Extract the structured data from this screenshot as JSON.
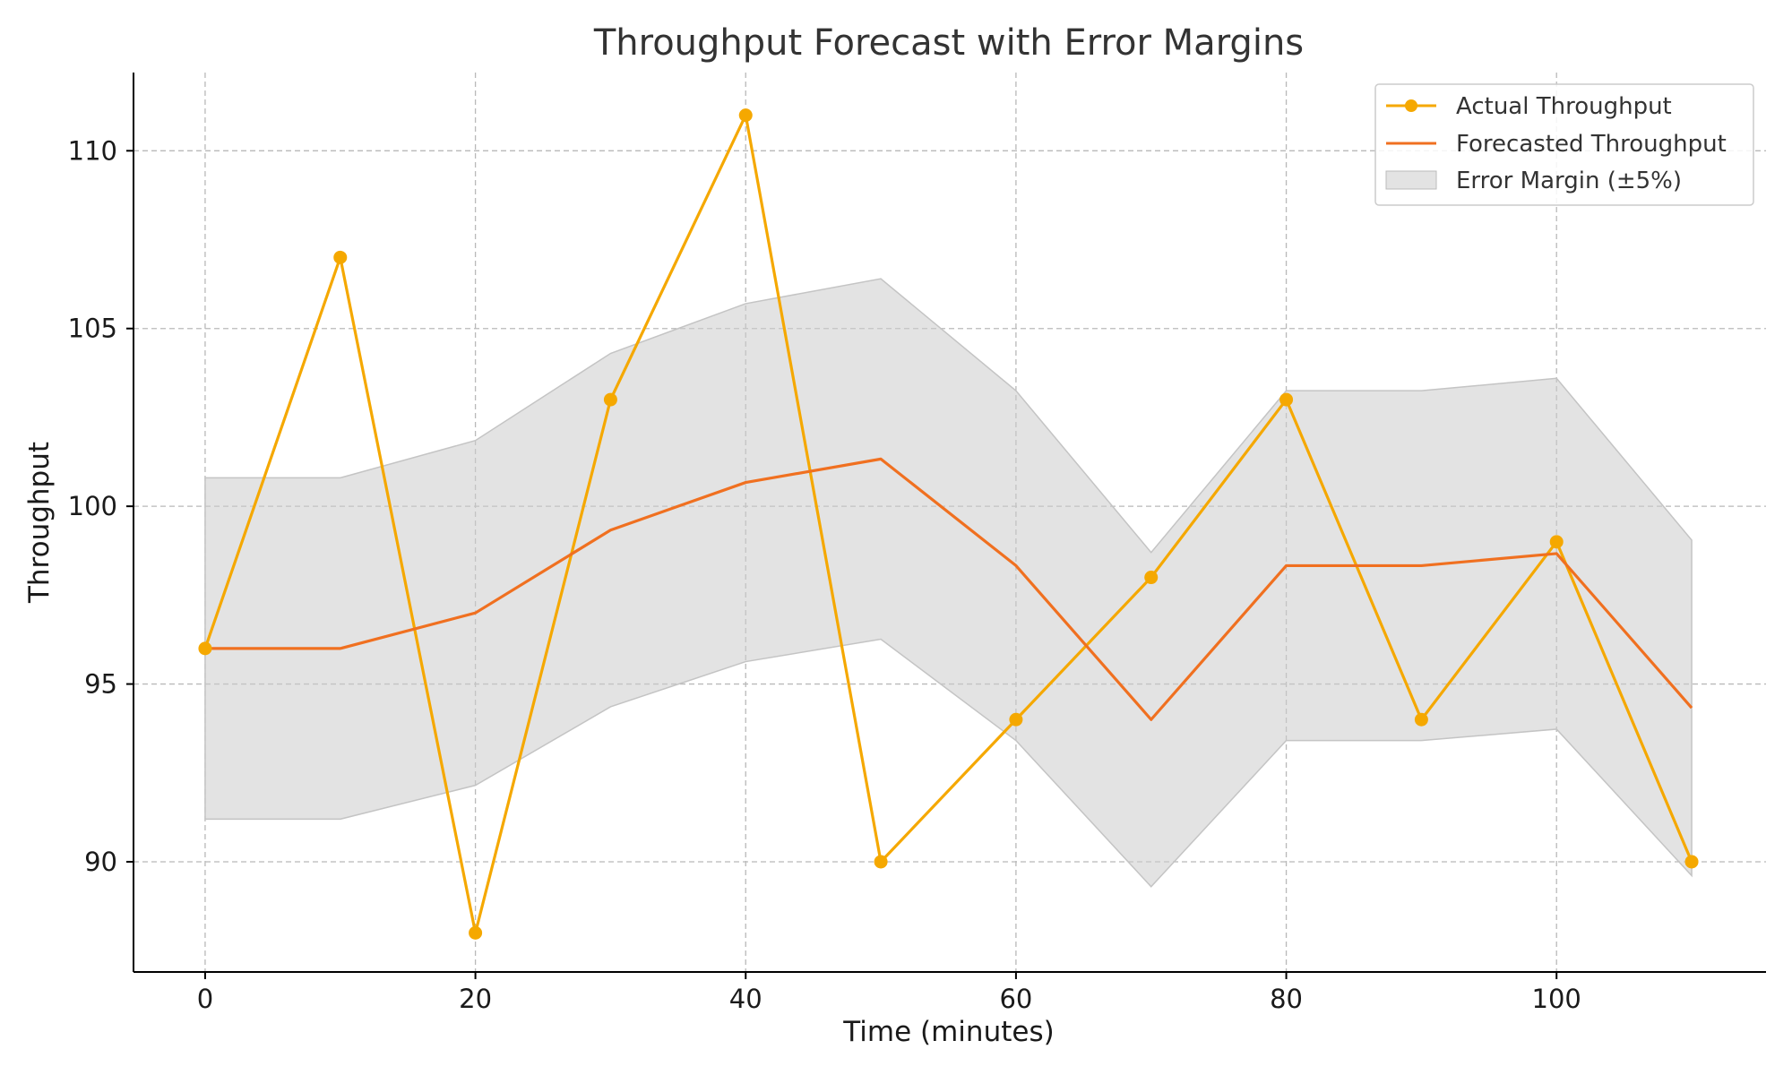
{
  "chart_data": {
    "type": "line",
    "title": "Throughput Forecast with Error Margins",
    "xlabel": "Time (minutes)",
    "ylabel": "Throughput",
    "x": [
      0,
      10,
      20,
      30,
      40,
      50,
      60,
      70,
      80,
      90,
      100,
      110
    ],
    "xlim": [
      -5.3,
      115.5
    ],
    "ylim": [
      86.9,
      112.2
    ],
    "xticks": [
      0,
      20,
      40,
      60,
      80,
      100
    ],
    "yticks": [
      90,
      95,
      100,
      105,
      110
    ],
    "grid": true,
    "legend_position": "top-right",
    "series": [
      {
        "name": "Actual Throughput",
        "kind": "line-markers",
        "color": "#f5a800",
        "values": [
          96,
          107,
          88,
          103,
          111,
          90,
          94,
          98,
          103,
          94,
          99,
          90
        ]
      },
      {
        "name": "Forecasted Throughput",
        "kind": "line",
        "color": "#f07020",
        "values": [
          96,
          96,
          97,
          99.33,
          100.67,
          101.33,
          98.33,
          94,
          98.33,
          98.33,
          98.67,
          94.33
        ]
      },
      {
        "name": "Error Margin (±5%)",
        "kind": "band",
        "color": "#cccccc",
        "lower": [
          91.2,
          91.2,
          92.15,
          94.36,
          95.63,
          96.26,
          93.41,
          89.3,
          93.41,
          93.41,
          93.73,
          89.61
        ],
        "upper": [
          100.8,
          100.8,
          101.85,
          104.3,
          105.7,
          106.4,
          103.25,
          98.7,
          103.25,
          103.25,
          103.6,
          99.05
        ]
      }
    ]
  }
}
